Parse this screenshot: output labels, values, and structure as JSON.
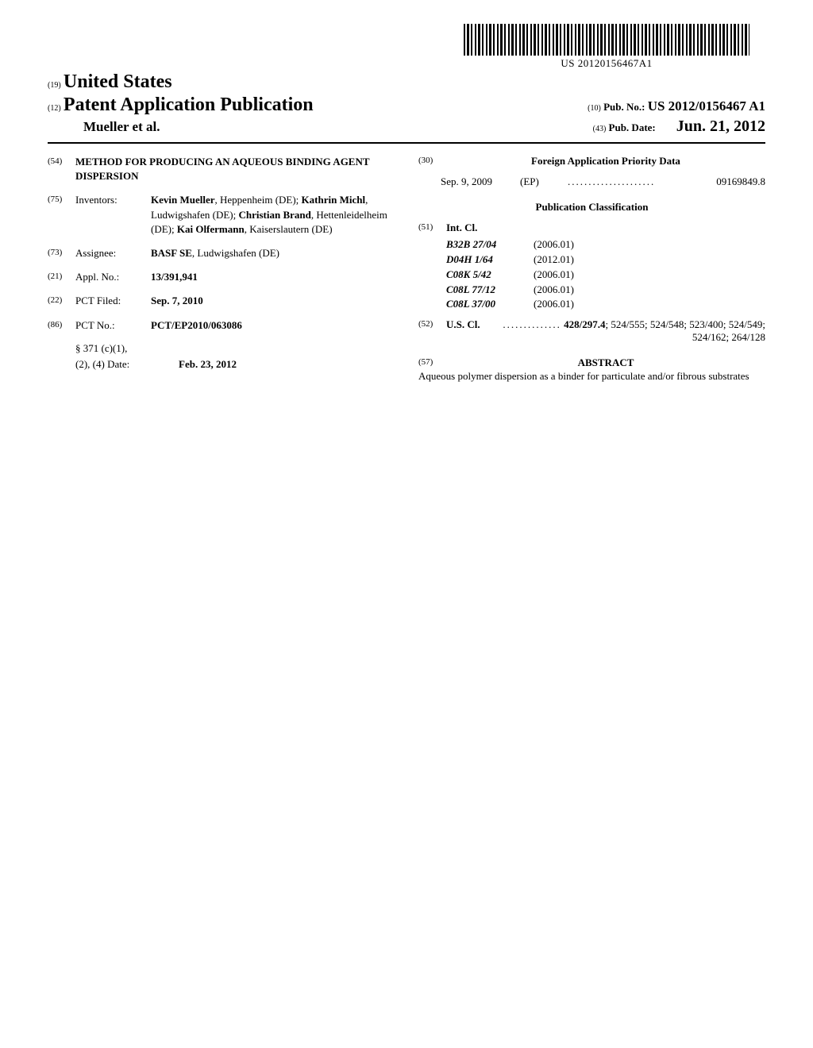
{
  "barcode_text": "US 20120156467A1",
  "country": {
    "code": "(19)",
    "name": "United States"
  },
  "doc_kind": {
    "code": "(12)",
    "title": "Patent Application Publication"
  },
  "authors_line": "Mueller et al.",
  "pub_no": {
    "code": "(10)",
    "label": "Pub. No.:",
    "value": "US 2012/0156467 A1"
  },
  "pub_date": {
    "code": "(43)",
    "label": "Pub. Date:",
    "value": "Jun. 21, 2012"
  },
  "title": {
    "code": "(54)",
    "value": "METHOD FOR PRODUCING AN AQUEOUS BINDING AGENT DISPERSION"
  },
  "inventors": {
    "code": "(75)",
    "label": "Inventors:",
    "value_html": "<b>Kevin Mueller</b>, Heppenheim (DE); <b>Kathrin Michl</b>, Ludwigshafen (DE); <b>Christian Brand</b>, Hettenleidelheim (DE); <b>Kai Olfermann</b>, Kaiserslautern (DE)"
  },
  "assignee": {
    "code": "(73)",
    "label": "Assignee:",
    "value_html": "<b>BASF SE</b>, Ludwigshafen (DE)"
  },
  "appl_no": {
    "code": "(21)",
    "label": "Appl. No.:",
    "value": "13/391,941"
  },
  "pct_filed": {
    "code": "(22)",
    "label": "PCT Filed:",
    "value": "Sep. 7, 2010"
  },
  "pct_no": {
    "code": "(86)",
    "label": "PCT No.:",
    "value": "PCT/EP2010/063086"
  },
  "s371": {
    "label1": "§ 371 (c)(1),",
    "label2": "(2), (4) Date:",
    "value": "Feb. 23, 2012"
  },
  "foreign_priority": {
    "code": "(30)",
    "heading": "Foreign Application Priority Data",
    "date": "Sep. 9, 2009",
    "country": "(EP)",
    "number": "09169849.8"
  },
  "pub_classification_heading": "Publication Classification",
  "intcl": {
    "code": "(51)",
    "label": "Int. Cl.",
    "items": [
      {
        "code": "B32B 27/04",
        "date": "(2006.01)"
      },
      {
        "code": "D04H 1/64",
        "date": "(2012.01)"
      },
      {
        "code": "C08K 5/42",
        "date": "(2006.01)"
      },
      {
        "code": "C08L 77/12",
        "date": "(2006.01)"
      },
      {
        "code": "C08L 37/00",
        "date": "(2006.01)"
      }
    ]
  },
  "uscl": {
    "code": "(52)",
    "label": "U.S. Cl.",
    "primary": "428/297.4",
    "rest": "; 524/555; 524/548; 523/400; 524/549; 524/162; 264/128"
  },
  "abstract": {
    "code": "(57)",
    "heading": "ABSTRACT",
    "text": "Aqueous polymer dispersion as a binder for particulate and/or fibrous substrates"
  }
}
